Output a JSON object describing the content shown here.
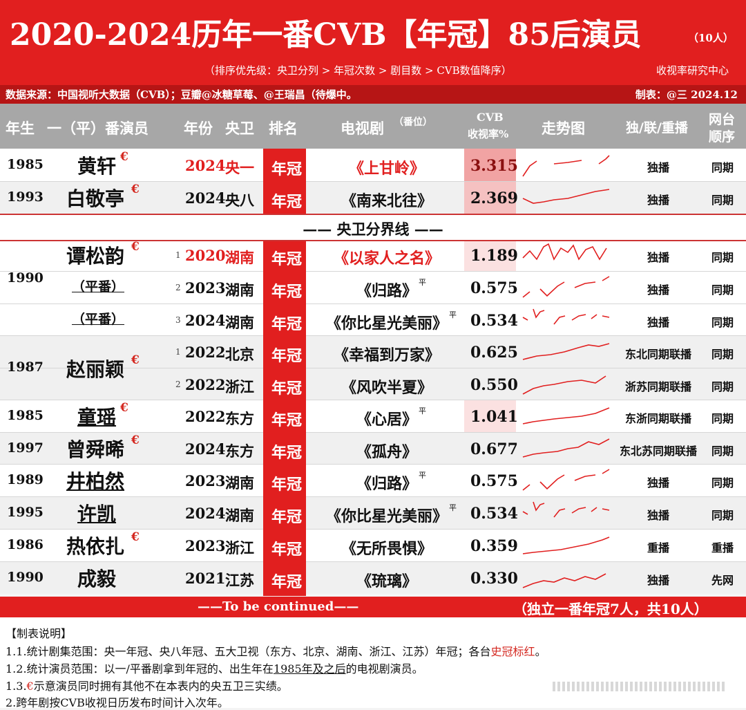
{
  "header": {
    "title": "2020-2024历年一番CVB【年冠】85后演员",
    "count": "（10人）",
    "sort_rule": "（排序优先级：央卫分列 > 年冠次数 > 剧目数 > CVB数值降序）",
    "center": "收视率研究中心",
    "source": "数据来源：中国视听大数据（CVB）；豆瓣@冰糖草莓、@王瑞昌（待爆中。",
    "maker": "制表：@三  2024.12"
  },
  "columns": {
    "birth": "年生",
    "actor": "一（平）番演员",
    "year": "年份",
    "channel": "央卫",
    "rank": "排名",
    "drama": "电视剧",
    "drama_note": "（番位）",
    "cvb_line1": "CVB",
    "cvb_line2": "收视率%",
    "trend": "走势图",
    "broadcast": "独/联/重播",
    "net_line1": "网台",
    "net_line2": "顺序"
  },
  "divider": "——  央卫分界线  ——",
  "rank_label": "年冠",
  "euro": "€",
  "rows": [
    {
      "birth": "1985",
      "name": "黄轩",
      "euro": true,
      "year": "2024",
      "channel": "央一",
      "drama": "《上甘岭》",
      "cvb": "3.315",
      "broadcast": "独播",
      "net": "同期",
      "red": true
    },
    {
      "birth": "1993",
      "name": "白敬亭",
      "euro": true,
      "year": "2024",
      "channel": "央八",
      "drama": "《南来北往》",
      "cvb": "2.369",
      "broadcast": "独播",
      "net": "同期"
    },
    {
      "birth": "1990",
      "name": "谭松韵",
      "euro": true,
      "idx": "1",
      "year": "2020",
      "channel": "湖南",
      "drama": "《以家人之名》",
      "cvb": "1.189",
      "broadcast": "独播",
      "net": "同期",
      "red": true
    },
    {
      "name": "（平番）",
      "idx": "2",
      "year": "2023",
      "channel": "湖南",
      "drama": "《归路》",
      "ping": "平",
      "cvb": "0.575",
      "broadcast": "独播",
      "net": "同期"
    },
    {
      "name": "（平番）",
      "idx": "3",
      "year": "2024",
      "channel": "湖南",
      "drama": "《你比星光美丽》",
      "ping": "平",
      "cvb": "0.534",
      "broadcast": "独播",
      "net": "同期"
    },
    {
      "birth": "1987",
      "name": "赵丽颖",
      "euro": true,
      "idx": "1",
      "year": "2022",
      "channel": "北京",
      "drama": "《幸福到万家》",
      "cvb": "0.625",
      "broadcast": "东北同期联播",
      "net": "同期"
    },
    {
      "idx": "2",
      "year": "2022",
      "channel": "浙江",
      "drama": "《风吹半夏》",
      "cvb": "0.550",
      "broadcast": "浙苏同期联播",
      "net": "同期"
    },
    {
      "birth": "1985",
      "name": "童瑶",
      "euro": true,
      "year": "2022",
      "channel": "东方",
      "drama": "《心居》",
      "ping": "平",
      "cvb": "1.041",
      "broadcast": "东浙同期联播",
      "net": "同期"
    },
    {
      "birth": "1997",
      "name": "曾舜晞",
      "euro": true,
      "year": "2024",
      "channel": "东方",
      "drama": "《孤舟》",
      "cvb": "0.677",
      "broadcast": "东北苏同期联播",
      "net": "同期"
    },
    {
      "birth": "1989",
      "name": "井柏然",
      "year": "2023",
      "channel": "湖南",
      "drama": "《归路》",
      "ping": "平",
      "cvb": "0.575",
      "broadcast": "独播",
      "net": "同期"
    },
    {
      "birth": "1995",
      "name": "许凯",
      "year": "2024",
      "channel": "湖南",
      "drama": "《你比星光美丽》",
      "ping": "平",
      "cvb": "0.534",
      "broadcast": "独播",
      "net": "同期"
    },
    {
      "birth": "1986",
      "name": "热依扎",
      "euro": true,
      "year": "2023",
      "channel": "浙江",
      "drama": "《无所畏惧》",
      "cvb": "0.359",
      "broadcast": "重播",
      "net": "重播"
    },
    {
      "birth": "1990",
      "name": "成毅",
      "year": "2021",
      "channel": "江苏",
      "drama": "《琉璃》",
      "cvb": "0.330",
      "broadcast": "独播",
      "net": "先网"
    }
  ],
  "footer": {
    "continued": "——To be continued——",
    "summary": "（独立一番年冠7人，共10人）"
  },
  "notes": {
    "title": "【制表说明】",
    "n1_a": "1.1.统计剧集范围：央一年冠、央八年冠、五大卫视（东方、北京、湖南、浙江、江苏）年冠；各台",
    "n1_b": "史冠标红",
    "n1_c": "。",
    "n2_a": "1.2.统计演员范围：以一/平番剧拿到年冠的、出生年在",
    "n2_b": "1985年及之后",
    "n2_c": "的电视剧演员。",
    "n3_a": "1.3.",
    "n3_b": "示意演员同时拥有其他不在本表内的央五卫三实绩。",
    "n4": "2.跨年剧按CVB收视日历发布时间计入次年。"
  },
  "colors": {
    "red": "#e11f1f",
    "dark_red": "#b61515",
    "gray": "#a7a7a7",
    "line": "#c33"
  }
}
